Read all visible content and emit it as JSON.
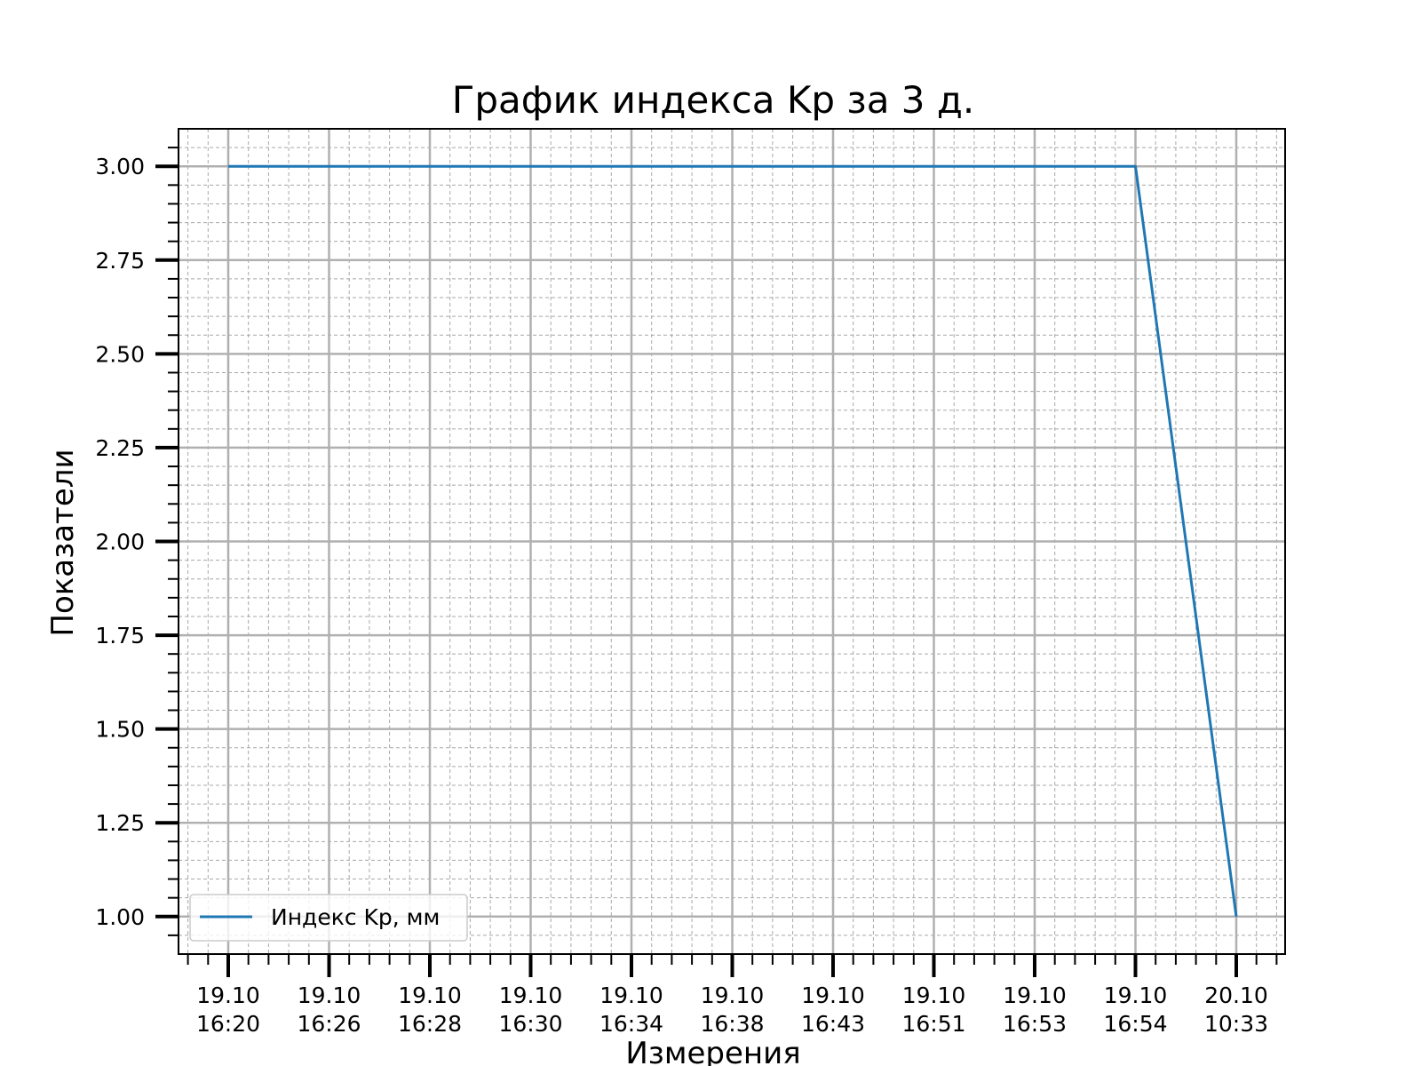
{
  "chart_data": {
    "type": "line",
    "title": "График индекса Kp за 3 д.",
    "xlabel": "Измерения",
    "ylabel": "Показатели",
    "categories": [
      "19.10\n16:20",
      "19.10\n16:26",
      "19.10\n16:28",
      "19.10\n16:30",
      "19.10\n16:34",
      "19.10\n16:38",
      "19.10\n16:43",
      "19.10\n16:51",
      "19.10\n16:53",
      "19.10\n16:54",
      "20.10\n10:33"
    ],
    "series": [
      {
        "name": "Индекс Kp, мм",
        "values": [
          3,
          3,
          3,
          3,
          3,
          3,
          3,
          3,
          3,
          3,
          1
        ],
        "color": "#1f77b4"
      }
    ],
    "ylim": [
      0.9,
      3.1
    ],
    "yticks": [
      1.0,
      1.25,
      1.5,
      1.75,
      2.0,
      2.25,
      2.5,
      2.75,
      3.0
    ],
    "yticklabels": [
      "1.00",
      "1.25",
      "1.50",
      "1.75",
      "2.00",
      "2.25",
      "2.50",
      "2.75",
      "3.00"
    ],
    "grid": true,
    "minor_grid": true,
    "legend_position": "lower-left"
  }
}
